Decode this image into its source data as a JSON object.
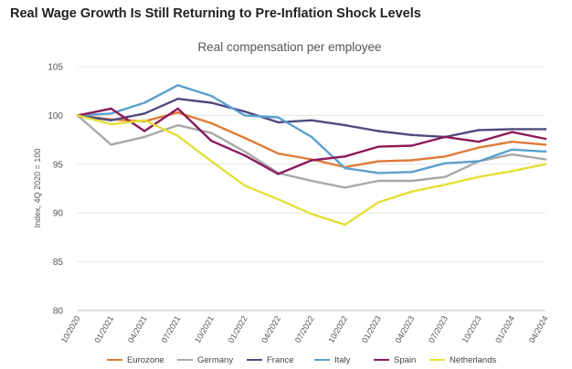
{
  "headline": "Real Wage Growth Is Still Returning to Pre-Inflation Shock Levels",
  "chart_data": {
    "type": "line",
    "title": "Real compensation per employee",
    "xlabel": "",
    "ylabel": "Index, 4Q 2020 = 100",
    "ylim": [
      80,
      105
    ],
    "yticks": [
      80,
      85,
      90,
      95,
      100,
      105
    ],
    "grid": true,
    "legend_position": "bottom",
    "x": [
      "10/2020",
      "01/2021",
      "04/2021",
      "07/2021",
      "10/2021",
      "01/2022",
      "04/2022",
      "07/2022",
      "10/2022",
      "01/2023",
      "04/2023",
      "07/2023",
      "10/2023",
      "01/2024",
      "04/2024"
    ],
    "series": [
      {
        "name": "Eurozone",
        "color": "#E07B39",
        "values": [
          100,
          99.6,
          99.4,
          100.3,
          99.2,
          97.7,
          96.1,
          95.5,
          94.7,
          95.3,
          95.4,
          95.8,
          96.7,
          97.3,
          97.0
        ]
      },
      {
        "name": "Germany",
        "color": "#A8A8A8",
        "values": [
          100,
          97.0,
          97.8,
          99.0,
          98.2,
          96.3,
          94.1,
          93.3,
          92.6,
          93.3,
          93.3,
          93.7,
          95.3,
          96.0,
          95.5
        ]
      },
      {
        "name": "France",
        "color": "#4E4A7E",
        "values": [
          100,
          99.5,
          100.2,
          101.7,
          101.3,
          100.4,
          99.3,
          99.5,
          99.0,
          98.4,
          98.0,
          97.8,
          98.5,
          98.6,
          98.6
        ]
      },
      {
        "name": "Italy",
        "color": "#5AA0D0",
        "values": [
          100,
          100.2,
          101.3,
          103.1,
          102.0,
          100.0,
          99.8,
          97.8,
          94.6,
          94.1,
          94.2,
          95.1,
          95.3,
          96.5,
          96.3
        ]
      },
      {
        "name": "Spain",
        "color": "#8B1A5A",
        "values": [
          100,
          100.7,
          98.4,
          100.7,
          97.4,
          95.9,
          94.0,
          95.4,
          95.8,
          96.8,
          96.9,
          97.8,
          97.3,
          98.3,
          97.6
        ]
      },
      {
        "name": "Netherlands",
        "color": "#E3E036",
        "values": [
          100,
          99.1,
          99.5,
          97.9,
          95.3,
          92.8,
          91.4,
          89.9,
          88.8,
          91.1,
          92.2,
          92.9,
          93.7,
          94.3,
          95.0
        ]
      }
    ]
  }
}
